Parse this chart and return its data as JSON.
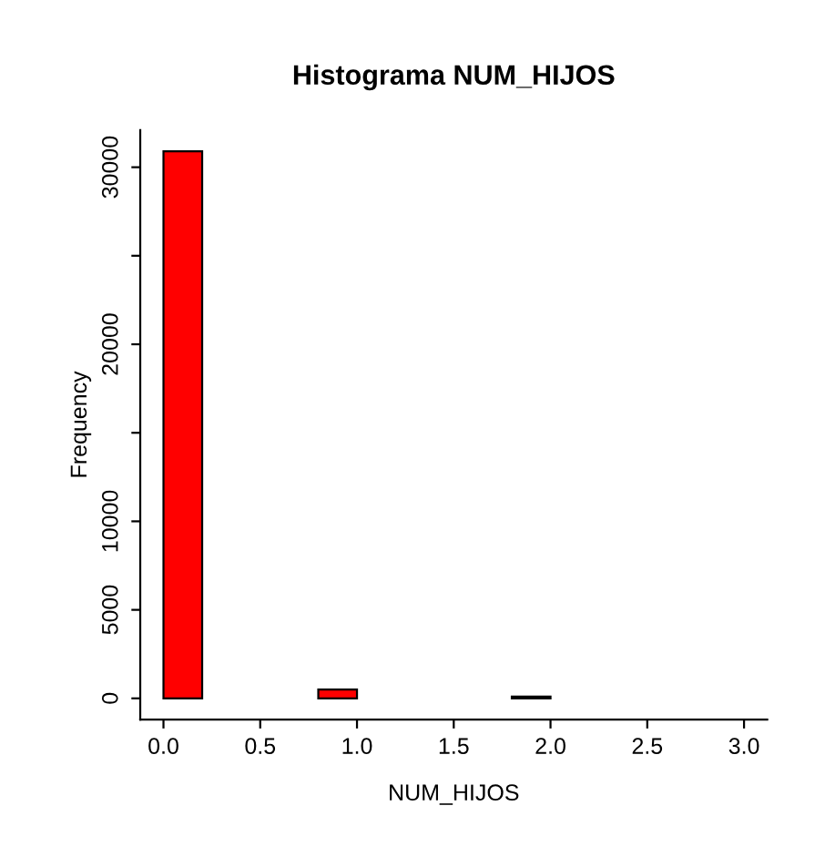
{
  "chart_data": {
    "type": "histogram",
    "title": "Histograma NUM_HIJOS",
    "xlabel": "NUM_HIJOS",
    "ylabel": "Frequency",
    "bins": [
      0,
      0.2,
      0.4,
      0.6,
      0.8,
      1,
      1.2,
      1.4,
      1.6,
      1.8,
      2,
      2.2,
      2.4,
      2.6,
      2.8,
      3
    ],
    "values": [
      30900,
      0,
      0,
      0,
      500,
      0,
      0,
      0,
      0,
      100,
      0,
      0,
      0,
      0,
      0
    ],
    "color": "#ff0000",
    "xlim": [
      -0.12,
      3.12
    ],
    "ylim": [
      -1200,
      32100
    ],
    "xticks": [
      {
        "value": 0,
        "label": "0.0"
      },
      {
        "value": 0.5,
        "label": "0.5"
      },
      {
        "value": 1,
        "label": "1.0"
      },
      {
        "value": 1.5,
        "label": "1.5"
      },
      {
        "value": 2,
        "label": "2.0"
      },
      {
        "value": 2.5,
        "label": "2.5"
      },
      {
        "value": 3,
        "label": "3.0"
      }
    ],
    "yticks": [
      0,
      5000,
      10000,
      {
        "value": 15000,
        "label": null
      },
      20000,
      {
        "value": 25000,
        "label": null
      },
      30000
    ],
    "grid": false
  }
}
